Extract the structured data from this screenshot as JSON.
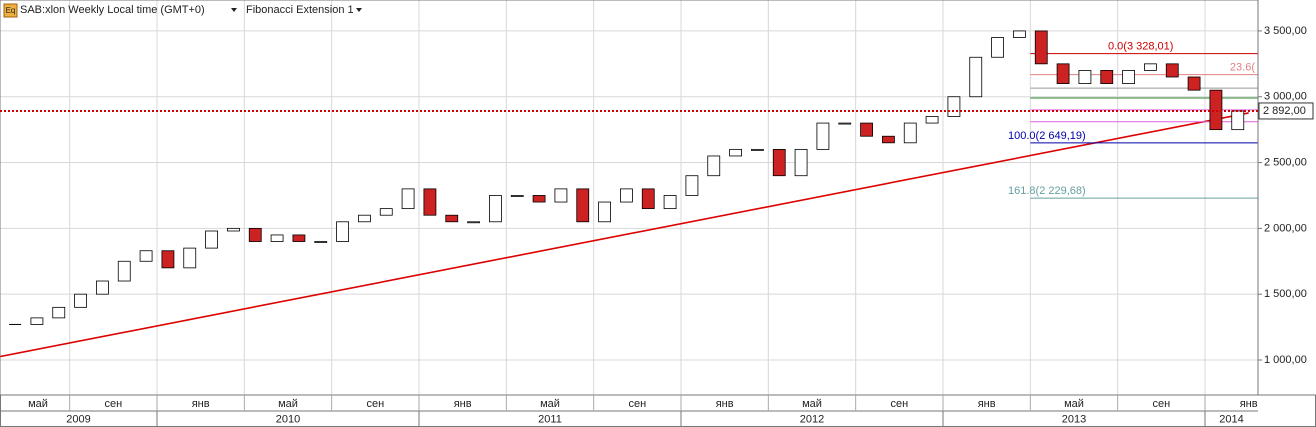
{
  "chart_data": {
    "type": "candlestick",
    "title": "SAB:xlon Weekly Local time (GMT+0)",
    "subtitle": "Fibonacci Extension 1",
    "icon_label": "Eq",
    "x": [
      "2009-06",
      "2009-07",
      "2009-08",
      "2009-09",
      "2009-10",
      "2009-11",
      "2009-12",
      "2010-01",
      "2010-02",
      "2010-03",
      "2010-04",
      "2010-05",
      "2010-06",
      "2010-07",
      "2010-08",
      "2010-09",
      "2010-10",
      "2010-11",
      "2010-12",
      "2011-01",
      "2011-02",
      "2011-03",
      "2011-04",
      "2011-05",
      "2011-06",
      "2011-07",
      "2011-08",
      "2011-09",
      "2011-10",
      "2011-11",
      "2011-12",
      "2012-01",
      "2012-02",
      "2012-03",
      "2012-04",
      "2012-05",
      "2012-06",
      "2012-07",
      "2012-08",
      "2012-09",
      "2012-10",
      "2012-11",
      "2012-12",
      "2013-01",
      "2013-02",
      "2013-03",
      "2013-04",
      "2013-05",
      "2013-06",
      "2013-07",
      "2013-08",
      "2013-09",
      "2013-10",
      "2013-11",
      "2013-12",
      "2014-01",
      "2014-02"
    ],
    "values": [
      1270,
      1320,
      1400,
      1500,
      1600,
      1750,
      1830,
      1700,
      1850,
      1980,
      2000,
      1900,
      1950,
      1900,
      1900,
      2050,
      2100,
      2150,
      2300,
      2100,
      2050,
      2050,
      2250,
      2250,
      2200,
      2300,
      2050,
      2200,
      2300,
      2150,
      2250,
      2400,
      2550,
      2600,
      2600,
      2400,
      2600,
      2800,
      2800,
      2700,
      2650,
      2800,
      2850,
      3000,
      3300,
      3450,
      3500,
      3250,
      3100,
      3200,
      3100,
      3200,
      3250,
      3150,
      3050,
      2750,
      2892
    ],
    "up_color": "#ffffff",
    "down_color": "#cc2222",
    "ylim": [
      734,
      3735
    ],
    "yticks": [
      {
        "value": 1000,
        "label": "1 000,00"
      },
      {
        "value": 1500,
        "label": "1 500,00"
      },
      {
        "value": 2000,
        "label": "2 000,00"
      },
      {
        "value": 2500,
        "label": "2 500,00"
      },
      {
        "value": 3000,
        "label": "3 000,00"
      },
      {
        "value": 3500,
        "label": "3 500,00"
      }
    ],
    "xticks": [
      {
        "value": "2009-05",
        "label": "май"
      },
      {
        "value": "2009-09",
        "label": "сен"
      },
      {
        "value": "2010-01",
        "label": "янв"
      },
      {
        "value": "2010-05",
        "label": "май"
      },
      {
        "value": "2010-09",
        "label": "сен"
      },
      {
        "value": "2011-01",
        "label": "янв"
      },
      {
        "value": "2011-05",
        "label": "май"
      },
      {
        "value": "2011-09",
        "label": "сен"
      },
      {
        "value": "2012-01",
        "label": "янв"
      },
      {
        "value": "2012-05",
        "label": "май"
      },
      {
        "value": "2012-09",
        "label": "сен"
      },
      {
        "value": "2013-01",
        "label": "янв"
      },
      {
        "value": "2013-05",
        "label": "май"
      },
      {
        "value": "2013-09",
        "label": "сен"
      },
      {
        "value": "2014-01",
        "label": "янв"
      }
    ],
    "years": [
      {
        "value": "2009-01",
        "label": "2009"
      },
      {
        "value": "2010-01",
        "label": "2010"
      },
      {
        "value": "2011-01",
        "label": "2011"
      },
      {
        "value": "2012-01",
        "label": "2012"
      },
      {
        "value": "2013-01",
        "label": "2013"
      },
      {
        "value": "2014-01",
        "label": "2014"
      }
    ],
    "grid": true,
    "last_price": {
      "value": 2892,
      "label": "2 892,00",
      "color": "#cc0000"
    },
    "trend_line": {
      "x": [
        "2009-05",
        "2014-03"
      ],
      "values": [
        1000,
        2877
      ],
      "color": "#dd0000"
    },
    "fib_start": "2013-05",
    "fib_levels": [
      {
        "label": "0.0(3 328,01)",
        "value": 3328.01,
        "color": "#cc0000"
      },
      {
        "label": "23.6(",
        "value": 3168,
        "color": "#e08080"
      },
      {
        "label": null,
        "value": 3065,
        "color": "#999999"
      },
      {
        "label": null,
        "value": 2990,
        "color": "#2a8a2a"
      },
      {
        "label": null,
        "value": 2900,
        "color": "#e060e0"
      },
      {
        "label": null,
        "value": 2810,
        "color": "#e060e0"
      },
      {
        "label": "100.0(2 649,19)",
        "value": 2649.19,
        "color": "#0000aa"
      },
      {
        "label": "161.8(2 229,68)",
        "value": 2229.68,
        "color": "#66a0a0"
      }
    ]
  }
}
